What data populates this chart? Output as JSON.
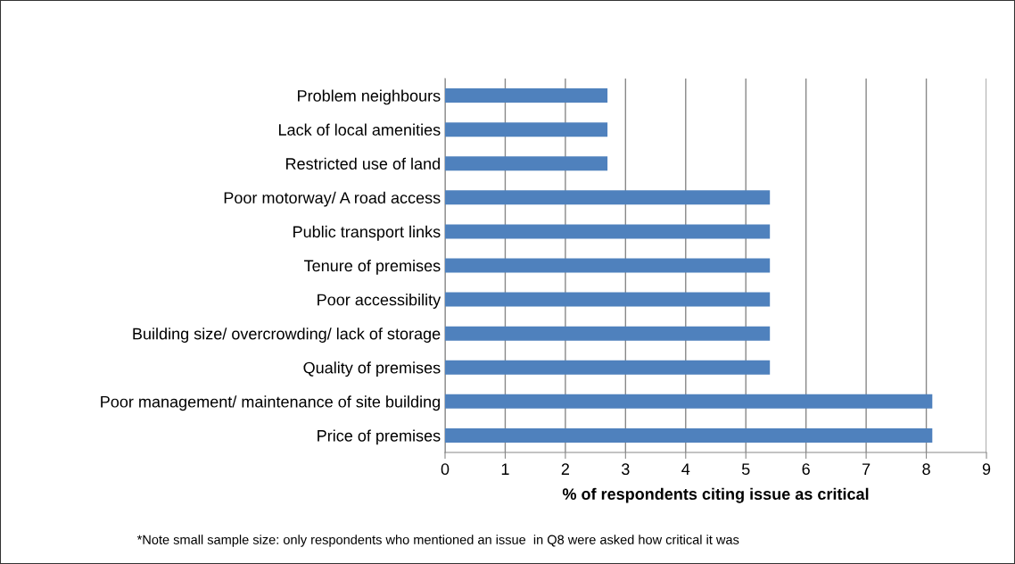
{
  "chart_data": {
    "type": "bar",
    "orientation": "horizontal",
    "categories": [
      "Problem neighbours",
      "Lack of local amenities",
      "Restricted use of land",
      "Poor motorway/ A road access",
      "Public transport links",
      "Tenure of premises",
      "Poor accessibility",
      "Building size/ overcrowding/ lack of storage",
      "Quality of premises",
      "Poor management/ maintenance of site building",
      "Price of premises"
    ],
    "values": [
      2.7,
      2.7,
      2.7,
      5.4,
      5.4,
      5.4,
      5.4,
      5.4,
      5.4,
      8.1,
      8.1
    ],
    "color": "#4f81bd",
    "xlim": [
      0,
      9
    ],
    "xticks": [
      0,
      1,
      2,
      3,
      4,
      5,
      6,
      7,
      8,
      9
    ],
    "xlabel": "% of respondents citing issue as critical",
    "grid": "x",
    "legend": false,
    "annotations": [
      "*Note small sample size: only respondents who mentioned an issue  in Q8 were asked how critical it was"
    ]
  }
}
